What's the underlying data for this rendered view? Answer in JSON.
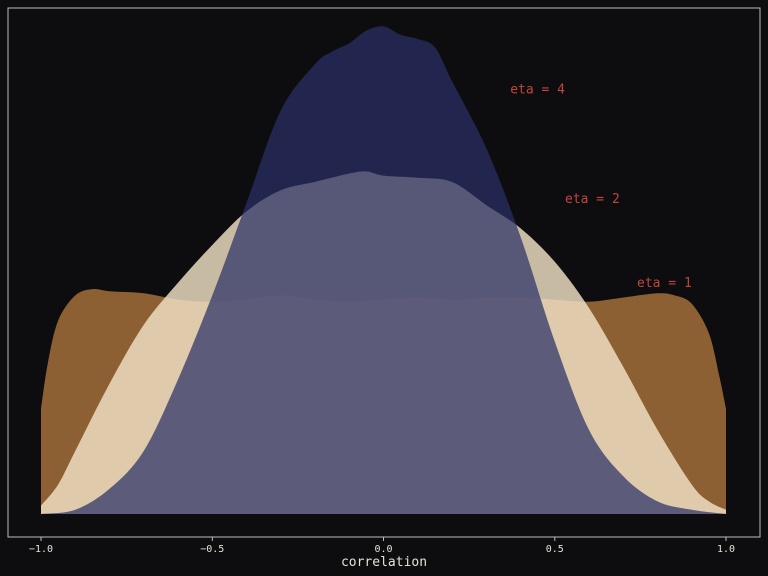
{
  "chart_data": {
    "type": "area",
    "title": "",
    "xlabel": "correlation",
    "ylabel": "",
    "xlim": [
      -1.0,
      1.0
    ],
    "ylim": [
      0,
      1.18
    ],
    "grid": false,
    "legend": "none",
    "x_ticks": [
      "−1.0",
      "−0.5",
      "0.0",
      "0.5",
      "1.0"
    ],
    "x_tick_values": [
      -1.0,
      -0.5,
      0.0,
      0.5,
      1.0
    ],
    "series": [
      {
        "name": "eta = 1",
        "color": "#a8733a",
        "opacity": 0.82,
        "x": [
          -1.0,
          -0.98,
          -0.95,
          -0.9,
          -0.85,
          -0.8,
          -0.7,
          -0.6,
          -0.5,
          -0.4,
          -0.3,
          -0.2,
          -0.1,
          0.0,
          0.1,
          0.2,
          0.3,
          0.4,
          0.5,
          0.6,
          0.7,
          0.8,
          0.85,
          0.9,
          0.95,
          0.98,
          1.0
        ],
        "y": [
          0.25,
          0.36,
          0.46,
          0.52,
          0.535,
          0.53,
          0.525,
          0.51,
          0.505,
          0.51,
          0.52,
          0.51,
          0.505,
          0.51,
          0.515,
          0.51,
          0.515,
          0.515,
          0.51,
          0.505,
          0.515,
          0.525,
          0.52,
          0.5,
          0.43,
          0.33,
          0.25
        ]
      },
      {
        "name": "eta = 2",
        "color": "#f2e2c6",
        "opacity": 0.82,
        "x": [
          -1.0,
          -0.95,
          -0.9,
          -0.8,
          -0.7,
          -0.6,
          -0.5,
          -0.4,
          -0.3,
          -0.2,
          -0.1,
          -0.05,
          0.0,
          0.1,
          0.2,
          0.3,
          0.4,
          0.5,
          0.6,
          0.7,
          0.8,
          0.9,
          0.95,
          1.0
        ],
        "y": [
          0.02,
          0.07,
          0.15,
          0.31,
          0.45,
          0.55,
          0.64,
          0.72,
          0.77,
          0.79,
          0.81,
          0.815,
          0.805,
          0.8,
          0.79,
          0.735,
          0.68,
          0.6,
          0.49,
          0.35,
          0.2,
          0.07,
          0.03,
          0.01
        ]
      },
      {
        "name": "eta = 4",
        "color": "#2b3066",
        "opacity": 0.72,
        "x": [
          -1.0,
          -0.9,
          -0.8,
          -0.7,
          -0.6,
          -0.5,
          -0.4,
          -0.3,
          -0.2,
          -0.15,
          -0.1,
          -0.05,
          0.0,
          0.05,
          0.1,
          0.15,
          0.2,
          0.3,
          0.4,
          0.5,
          0.6,
          0.7,
          0.8,
          0.9,
          1.0
        ],
        "y": [
          0.0,
          0.01,
          0.06,
          0.15,
          0.32,
          0.52,
          0.74,
          0.96,
          1.07,
          1.1,
          1.12,
          1.15,
          1.16,
          1.14,
          1.13,
          1.11,
          1.03,
          0.87,
          0.66,
          0.41,
          0.2,
          0.09,
          0.03,
          0.01,
          0.0
        ]
      }
    ],
    "annotations": [
      {
        "text": "eta = 4",
        "x": 0.37,
        "y": 1.0
      },
      {
        "text": "eta = 2",
        "x": 0.53,
        "y": 0.74
      },
      {
        "text": "eta = 1",
        "x": 0.74,
        "y": 0.54
      }
    ]
  }
}
